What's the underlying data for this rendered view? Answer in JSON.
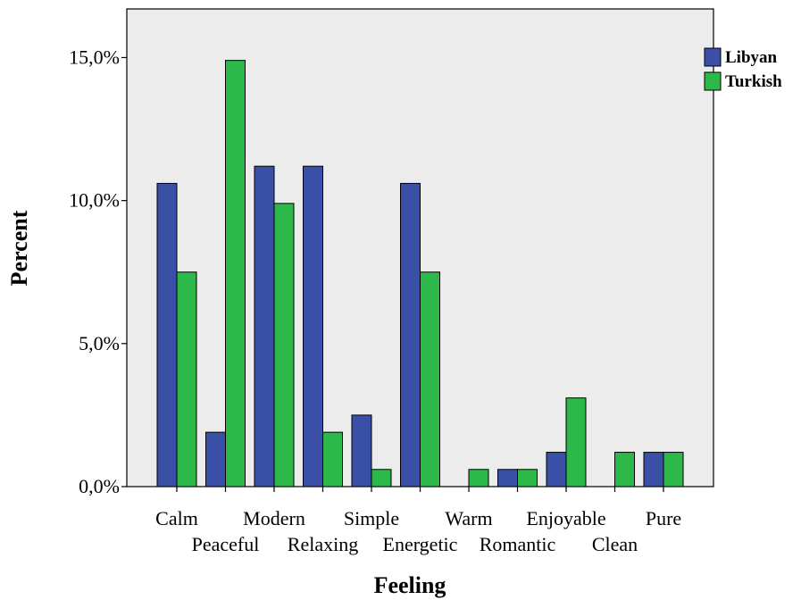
{
  "chart_data": {
    "type": "bar",
    "title": "",
    "xlabel": "Feeling",
    "ylabel": "Percent",
    "categories": [
      "Calm",
      "Peaceful",
      "Modern",
      "Relaxing",
      "Simple",
      "Energetic",
      "Warm",
      "Romantic",
      "Enjoyable",
      "Clean",
      "Pure"
    ],
    "series": [
      {
        "name": "Libyan",
        "color": "#3a4fa6",
        "values": [
          10.6,
          1.9,
          11.2,
          11.2,
          2.5,
          10.6,
          0.0,
          0.6,
          1.2,
          0.0,
          1.2
        ]
      },
      {
        "name": "Turkish",
        "color": "#2db84a",
        "values": [
          7.5,
          14.9,
          9.9,
          1.9,
          0.6,
          7.5,
          0.6,
          0.6,
          3.1,
          1.2,
          1.2
        ]
      }
    ],
    "ylim": [
      0,
      16.7
    ],
    "yticks": [
      {
        "value": 0,
        "label": "0,0%"
      },
      {
        "value": 5,
        "label": "5,0%"
      },
      {
        "value": 10,
        "label": "10,0%"
      },
      {
        "value": 15,
        "label": "15,0%"
      }
    ],
    "grid": false,
    "legend_position": "top-right",
    "plot_background": "#ececec"
  }
}
